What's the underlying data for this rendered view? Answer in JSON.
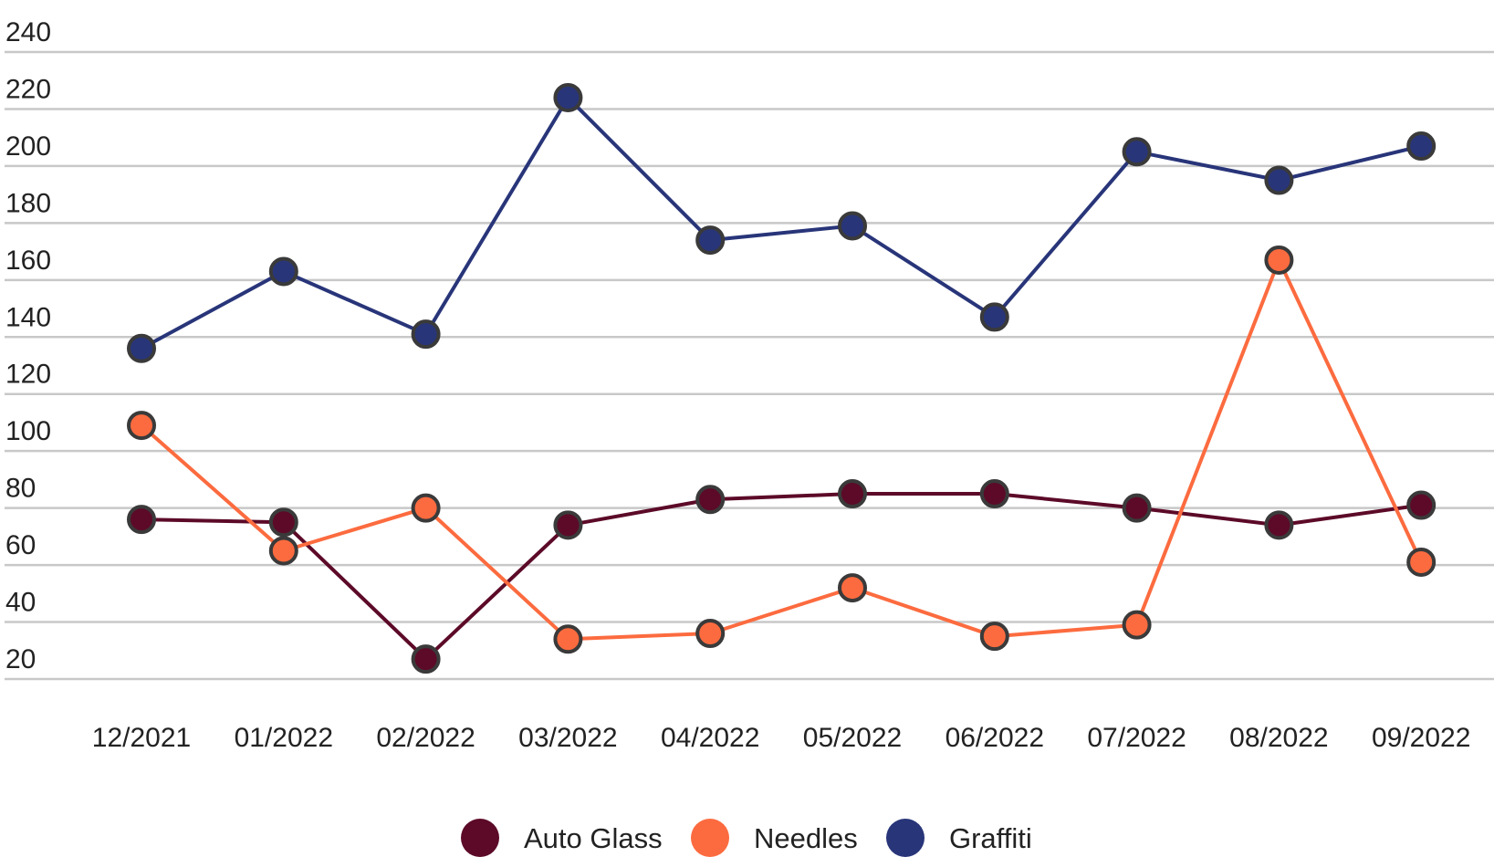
{
  "chart_data": {
    "type": "line",
    "categories": [
      "12/2021",
      "01/2022",
      "02/2022",
      "03/2022",
      "04/2022",
      "05/2022",
      "06/2022",
      "07/2022",
      "08/2022",
      "09/2022"
    ],
    "series": [
      {
        "name": "Auto Glass",
        "color": "#5c0a28",
        "values": [
          76,
          75,
          27,
          74,
          83,
          85,
          85,
          80,
          74,
          81
        ]
      },
      {
        "name": "Needles",
        "color": "#fc6b3f",
        "values": [
          109,
          65,
          80,
          34,
          36,
          52,
          35,
          39,
          167,
          61
        ]
      },
      {
        "name": "Graffiti",
        "color": "#283579",
        "values": [
          136,
          163,
          141,
          224,
          174,
          179,
          147,
          205,
          195,
          207
        ]
      }
    ],
    "y_ticks": [
      "20",
      "40",
      "60",
      "80",
      "100",
      "120",
      "140",
      "160",
      "180",
      "200",
      "220",
      "240"
    ],
    "ylim": [
      20,
      240
    ],
    "grid": true,
    "legend_position": "bottom-center",
    "title": "",
    "xlabel": "",
    "ylabel": ""
  }
}
